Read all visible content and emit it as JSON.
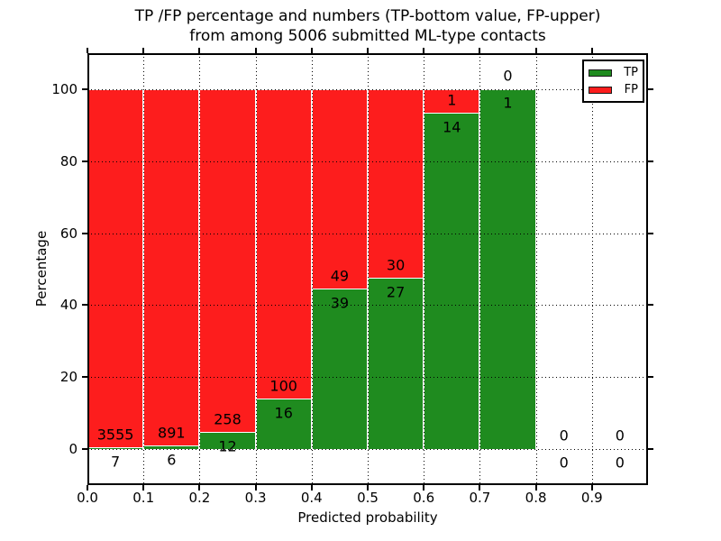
{
  "figure": {
    "title_line1": "TP /FP percentage and numbers (TP-bottom value, FP-upper)",
    "title_line2": "from among 5006 submitted ML-type contacts"
  },
  "colors": {
    "tp": "#1f8b1f",
    "fp": "#fd1d1d",
    "grid": "#000000",
    "bar_edge": "#ffffff",
    "background": "#ffffff",
    "text": "#000000"
  },
  "chart_data": {
    "type": "bar",
    "stacked": true,
    "normalized_to_percent": true,
    "title": "TP /FP percentage and numbers (TP-bottom value, FP-upper)\nfrom among 5006 submitted ML-type contacts",
    "total_contacts": 5006,
    "xlabel": "Predicted probability",
    "ylabel": "Percentage",
    "xlim": [
      0.0,
      1.0
    ],
    "ylim": [
      -10,
      110
    ],
    "grid": "dotted black, drawn above bars",
    "xticks": [
      {
        "label": "0.0",
        "value": 0.0
      },
      {
        "label": "0.1",
        "value": 0.1
      },
      {
        "label": "0.2",
        "value": 0.2
      },
      {
        "label": "0.3",
        "value": 0.3
      },
      {
        "label": "0.4",
        "value": 0.4
      },
      {
        "label": "0.5",
        "value": 0.5
      },
      {
        "label": "0.6",
        "value": 0.6
      },
      {
        "label": "0.7",
        "value": 0.7
      },
      {
        "label": "0.8",
        "value": 0.8
      },
      {
        "label": "0.9",
        "value": 0.9
      }
    ],
    "yticks": [
      0,
      20,
      40,
      60,
      80,
      100
    ],
    "legend": {
      "position": "upper right",
      "entries": [
        {
          "label": "TP",
          "color": "#1f8b1f"
        },
        {
          "label": "FP",
          "color": "#fd1d1d"
        }
      ]
    },
    "bins": [
      {
        "x0": 0.0,
        "x1": 0.1,
        "tp": 7,
        "fp": 3555
      },
      {
        "x0": 0.1,
        "x1": 0.2,
        "tp": 6,
        "fp": 891
      },
      {
        "x0": 0.2,
        "x1": 0.3,
        "tp": 12,
        "fp": 258
      },
      {
        "x0": 0.3,
        "x1": 0.4,
        "tp": 16,
        "fp": 100
      },
      {
        "x0": 0.4,
        "x1": 0.5,
        "tp": 39,
        "fp": 49
      },
      {
        "x0": 0.5,
        "x1": 0.6,
        "tp": 27,
        "fp": 30
      },
      {
        "x0": 0.6,
        "x1": 0.7,
        "tp": 14,
        "fp": 1
      },
      {
        "x0": 0.7,
        "x1": 0.8,
        "tp": 1,
        "fp": 0
      },
      {
        "x0": 0.8,
        "x1": 0.9,
        "tp": 0,
        "fp": 0
      },
      {
        "x0": 0.9,
        "x1": 1.0,
        "tp": 0,
        "fp": 0
      }
    ]
  }
}
